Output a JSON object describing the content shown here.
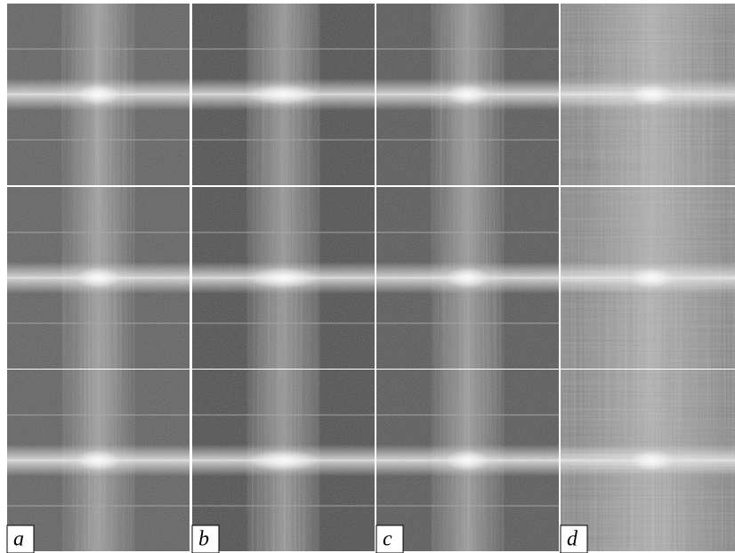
{
  "labels": [
    "a",
    "b",
    "c",
    "d"
  ]
}
